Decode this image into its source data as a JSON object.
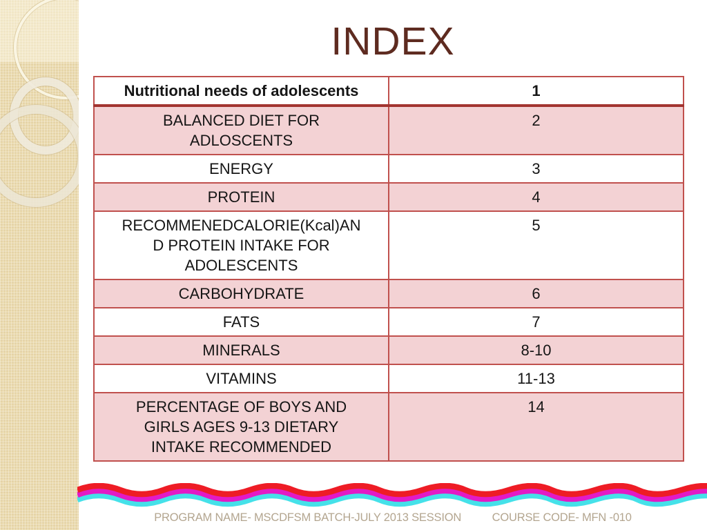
{
  "slide": {
    "title": "INDEX"
  },
  "index_table": {
    "rows": [
      {
        "topic": "Nutritional needs of adolescents",
        "page": "1",
        "header": true
      },
      {
        "topic": "BALANCED DIET FOR ADLOSCENTS",
        "page": "2"
      },
      {
        "topic": "ENERGY",
        "page": "3"
      },
      {
        "topic": "PROTEIN",
        "page": "4"
      },
      {
        "topic": "RECOMMENEDCALORIE(Kcal)AND PROTEIN INTAKE FOR ADOLESCENTS",
        "page": "5"
      },
      {
        "topic": "CARBOHYDRATE",
        "page": "6"
      },
      {
        "topic": "FATS",
        "page": "7"
      },
      {
        "topic": "MINERALS",
        "page": "8-10"
      },
      {
        "topic": "VITAMINS",
        "page": "11-13"
      },
      {
        "topic": "PERCENTAGE OF BOYS AND GIRLS AGES 9-13 DIETARY INTAKE RECOMMENDED",
        "page": "14"
      }
    ]
  },
  "footer": {
    "program_text": "PROGRAM NAME- MSCDFSM  BATCH-JULY 2013 SESSION",
    "course_text": "COURSE CODE- MFN -010"
  },
  "colors": {
    "title": "#5e2b20",
    "table_border": "#c0504d",
    "table_header_border": "#a23430",
    "row_band": "#f3d2d4",
    "footer_text": "#b3a58f",
    "sidebar": "#eadaae",
    "wave_red": "#ee1c25",
    "wave_magenta": "#e31ac6",
    "wave_cyan": "#45e1e9"
  }
}
